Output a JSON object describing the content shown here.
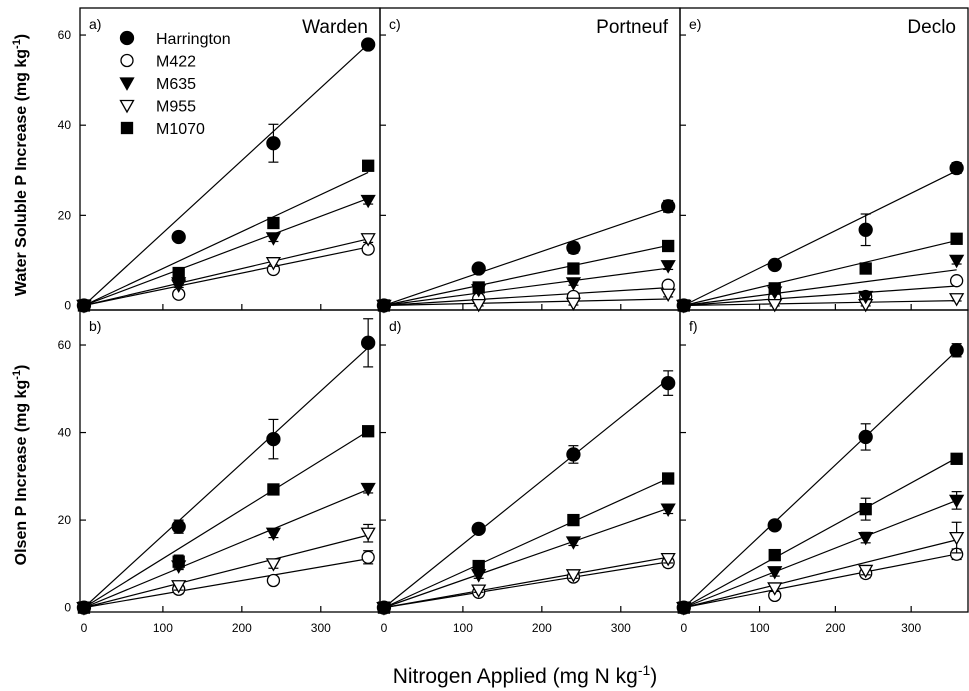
{
  "figure": {
    "xlabel": "Nitrogen Applied (mg N kg",
    "xlabel_sup": "-1",
    "xlabel_end": ")",
    "ylabel_top": "Water Soluble P Increase (mg kg",
    "ylabel_bottom": "Olsen P Increase (mg kg",
    "ylabel_sup": "-1",
    "ylabel_end": ")"
  },
  "legend": {
    "placement": "top-left of panel a",
    "entries": [
      {
        "name": "Harrington",
        "marker": "filled-circle"
      },
      {
        "name": "M422",
        "marker": "open-circle"
      },
      {
        "name": "M635",
        "marker": "filled-triangle-down"
      },
      {
        "name": "M955",
        "marker": "open-triangle-down"
      },
      {
        "name": "M1070",
        "marker": "filled-square"
      }
    ]
  },
  "chart_data": [
    {
      "type": "scatter",
      "panel": "a)",
      "soil": "Warden",
      "row": "top",
      "col": 0,
      "x": [
        0,
        120,
        240,
        360
      ],
      "xlim": [
        -5,
        375
      ],
      "ylim": [
        -1,
        66
      ],
      "xticks": [
        0,
        100,
        200,
        300
      ],
      "yticks": [
        0,
        20,
        40,
        60
      ],
      "series": [
        {
          "name": "Harrington",
          "values": [
            0,
            15.2,
            36.0,
            57.9
          ],
          "err": [
            0,
            0.5,
            4.2,
            1.0
          ],
          "fit": [
            0,
            0.161
          ]
        },
        {
          "name": "M422",
          "values": [
            0,
            2.5,
            8.0,
            12.5
          ],
          "err": [
            0,
            0.4,
            0.8,
            0.8
          ],
          "fit": [
            0,
            0.036
          ]
        },
        {
          "name": "M635",
          "values": [
            0,
            5.0,
            15.0,
            23.3
          ],
          "err": [
            0,
            0.5,
            0.8,
            0.8
          ],
          "fit": [
            0,
            0.066
          ]
        },
        {
          "name": "M955",
          "values": [
            0,
            4.5,
            9.5,
            14.8
          ],
          "err": [
            0,
            0.5,
            0.8,
            0.8
          ],
          "fit": [
            0,
            0.041
          ]
        },
        {
          "name": "M1070",
          "values": [
            0,
            7.2,
            18.3,
            31.0
          ],
          "err": [
            0,
            0.5,
            0.8,
            0.8
          ],
          "fit": [
            0,
            0.082
          ]
        }
      ]
    },
    {
      "type": "scatter",
      "panel": "c)",
      "soil": "Portneuf",
      "row": "top",
      "col": 1,
      "x": [
        0,
        120,
        240,
        360
      ],
      "xlim": [
        -5,
        375
      ],
      "ylim": [
        -1,
        66
      ],
      "xticks": [
        0,
        100,
        200,
        300
      ],
      "yticks": [
        0,
        20,
        40,
        60
      ],
      "series": [
        {
          "name": "Harrington",
          "values": [
            0,
            8.2,
            12.8,
            22.0
          ],
          "err": [
            0,
            0.8,
            1.2,
            1.3
          ],
          "fit": [
            0,
            0.06
          ]
        },
        {
          "name": "M422",
          "values": [
            0,
            1.5,
            2.0,
            4.5
          ],
          "err": [
            0,
            0.4,
            0.5,
            0.6
          ],
          "fit": [
            0,
            0.011
          ]
        },
        {
          "name": "M635",
          "values": [
            0,
            3.5,
            5.0,
            8.8
          ],
          "err": [
            0,
            0.5,
            0.5,
            0.8
          ],
          "fit": [
            0,
            0.023
          ]
        },
        {
          "name": "M955",
          "values": [
            0,
            0.2,
            0.5,
            2.5
          ],
          "err": [
            0,
            0.3,
            0.4,
            0.6
          ],
          "fit": [
            0,
            0.004
          ]
        },
        {
          "name": "M1070",
          "values": [
            0,
            4.0,
            8.2,
            13.2
          ],
          "err": [
            0,
            0.5,
            0.6,
            0.8
          ],
          "fit": [
            0,
            0.037
          ]
        }
      ]
    },
    {
      "type": "scatter",
      "panel": "e)",
      "soil": "Declo",
      "row": "top",
      "col": 2,
      "x": [
        0,
        120,
        240,
        360
      ],
      "xlim": [
        -5,
        375
      ],
      "ylim": [
        -1,
        66
      ],
      "xticks": [
        0,
        100,
        200,
        300
      ],
      "yticks": [
        0,
        20,
        40,
        60
      ],
      "series": [
        {
          "name": "Harrington",
          "values": [
            0,
            9.0,
            16.8,
            30.5
          ],
          "err": [
            0,
            1.0,
            3.5,
            1.2
          ],
          "fit": [
            0,
            0.083
          ]
        },
        {
          "name": "M422",
          "values": [
            0,
            1.8,
            2.0,
            5.5
          ],
          "err": [
            0,
            0.4,
            0.5,
            0.8
          ],
          "fit": [
            0,
            0.012
          ]
        },
        {
          "name": "M635",
          "values": [
            0,
            3.0,
            2.0,
            10.0
          ],
          "err": [
            0,
            0.5,
            0.5,
            0.8
          ],
          "fit": [
            0,
            0.022
          ]
        },
        {
          "name": "M955",
          "values": [
            0,
            0.2,
            0.2,
            1.5
          ],
          "err": [
            0,
            0.3,
            0.3,
            0.5
          ],
          "fit": [
            0,
            0.003
          ]
        },
        {
          "name": "M1070",
          "values": [
            0,
            3.8,
            8.2,
            14.8
          ],
          "err": [
            0,
            0.5,
            0.6,
            0.8
          ],
          "fit": [
            0,
            0.04
          ]
        }
      ]
    },
    {
      "type": "scatter",
      "panel": "b)",
      "soil": "Warden",
      "row": "bottom",
      "col": 0,
      "x": [
        0,
        120,
        240,
        360
      ],
      "xlim": [
        -5,
        375
      ],
      "ylim": [
        -1,
        68
      ],
      "xticks": [
        0,
        100,
        200,
        300
      ],
      "yticks": [
        0,
        20,
        40,
        60
      ],
      "series": [
        {
          "name": "Harrington",
          "values": [
            0,
            18.5,
            38.5,
            60.5
          ],
          "err": [
            0,
            1.5,
            4.5,
            5.5
          ],
          "fit": [
            0,
            0.165
          ]
        },
        {
          "name": "M422",
          "values": [
            0,
            4.2,
            6.2,
            11.5
          ],
          "err": [
            0,
            1.0,
            0.8,
            1.5
          ],
          "fit": [
            0,
            0.031
          ]
        },
        {
          "name": "M635",
          "values": [
            0,
            9.5,
            17.0,
            27.2
          ],
          "err": [
            0,
            0.8,
            1.0,
            1.0
          ],
          "fit": [
            0,
            0.075
          ]
        },
        {
          "name": "M955",
          "values": [
            0,
            5.0,
            10.0,
            17.0
          ],
          "err": [
            0,
            1.0,
            1.0,
            2.0
          ],
          "fit": [
            0,
            0.046
          ]
        },
        {
          "name": "M1070",
          "values": [
            0,
            10.5,
            27.0,
            40.3
          ],
          "err": [
            0,
            1.5,
            1.0,
            1.0
          ],
          "fit": [
            0,
            0.112
          ]
        }
      ]
    },
    {
      "type": "scatter",
      "panel": "d)",
      "soil": "Portneuf",
      "row": "bottom",
      "col": 1,
      "x": [
        0,
        120,
        240,
        360
      ],
      "xlim": [
        -5,
        375
      ],
      "ylim": [
        -1,
        68
      ],
      "xticks": [
        0,
        100,
        200,
        300
      ],
      "yticks": [
        0,
        20,
        40,
        60
      ],
      "series": [
        {
          "name": "Harrington",
          "values": [
            0,
            18.0,
            35.0,
            51.3
          ],
          "err": [
            0,
            0.8,
            2.0,
            2.8
          ],
          "fit": [
            0,
            0.145
          ]
        },
        {
          "name": "M422",
          "values": [
            0,
            3.5,
            7.0,
            10.3
          ],
          "err": [
            0,
            0.5,
            0.8,
            1.0
          ],
          "fit": [
            0,
            0.029
          ]
        },
        {
          "name": "M635",
          "values": [
            0,
            7.5,
            15.0,
            22.5
          ],
          "err": [
            0,
            0.8,
            0.8,
            1.0
          ],
          "fit": [
            0,
            0.063
          ]
        },
        {
          "name": "M955",
          "values": [
            0,
            4.0,
            7.5,
            11.2
          ],
          "err": [
            0,
            0.5,
            0.8,
            1.0
          ],
          "fit": [
            0,
            0.032
          ]
        },
        {
          "name": "M1070",
          "values": [
            0,
            9.5,
            20.0,
            29.5
          ],
          "err": [
            0,
            0.8,
            1.0,
            1.2
          ],
          "fit": [
            0,
            0.082
          ]
        }
      ]
    },
    {
      "type": "scatter",
      "panel": "f)",
      "soil": "Declo",
      "row": "bottom",
      "col": 2,
      "x": [
        0,
        120,
        240,
        360
      ],
      "xlim": [
        -5,
        375
      ],
      "ylim": [
        -1,
        68
      ],
      "xticks": [
        0,
        100,
        200,
        300
      ],
      "yticks": [
        0,
        20,
        40,
        60
      ],
      "series": [
        {
          "name": "Harrington",
          "values": [
            0,
            18.8,
            39.0,
            58.8
          ],
          "err": [
            0,
            1.0,
            3.0,
            1.5
          ],
          "fit": [
            0,
            0.163
          ]
        },
        {
          "name": "M422",
          "values": [
            0,
            2.8,
            7.8,
            12.2
          ],
          "err": [
            0,
            0.8,
            1.0,
            1.2
          ],
          "fit": [
            0,
            0.034
          ]
        },
        {
          "name": "M635",
          "values": [
            0,
            8.2,
            16.0,
            24.5
          ],
          "err": [
            0,
            1.0,
            1.2,
            2.0
          ],
          "fit": [
            0,
            0.068
          ]
        },
        {
          "name": "M955",
          "values": [
            0,
            4.5,
            8.5,
            16.0
          ],
          "err": [
            0,
            0.8,
            1.0,
            3.5
          ],
          "fit": [
            0,
            0.043
          ]
        },
        {
          "name": "M1070",
          "values": [
            0,
            12.0,
            22.5,
            34.0
          ],
          "err": [
            0,
            1.0,
            2.5,
            1.0
          ],
          "fit": [
            0,
            0.095
          ]
        }
      ]
    }
  ]
}
